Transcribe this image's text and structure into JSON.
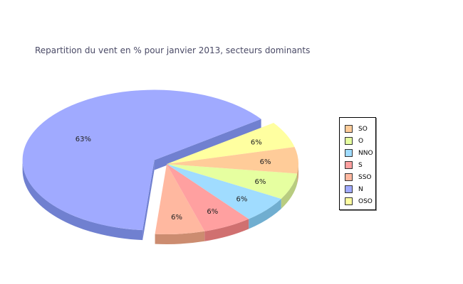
{
  "chart_data": {
    "type": "pie",
    "title": "Repartition du vent en % pour janvier 2013, secteurs dominants",
    "slices": [
      {
        "name": "SO",
        "value": 6,
        "label": "6%",
        "color": "#ffcc99",
        "side": "#cc9966"
      },
      {
        "name": "O",
        "value": 6,
        "label": "6%",
        "color": "#e6ffa0",
        "side": "#b8cc80"
      },
      {
        "name": "NNO",
        "value": 6,
        "label": "6%",
        "color": "#a0dcff",
        "side": "#70aed0"
      },
      {
        "name": "S",
        "value": 6,
        "label": "6%",
        "color": "#ffa0a0",
        "side": "#d07070"
      },
      {
        "name": "SSO",
        "value": 6,
        "label": "6%",
        "color": "#ffb8a0",
        "side": "#cc8c70"
      },
      {
        "name": "N",
        "value": 63,
        "label": "63%",
        "color": "#a0aaff",
        "side": "#7080d0"
      },
      {
        "name": "OSO",
        "value": 6,
        "label": "6%",
        "color": "#ffffa0",
        "side": "#cccc70"
      }
    ],
    "exploded": "N",
    "legend_position": "right",
    "style": "3d"
  }
}
